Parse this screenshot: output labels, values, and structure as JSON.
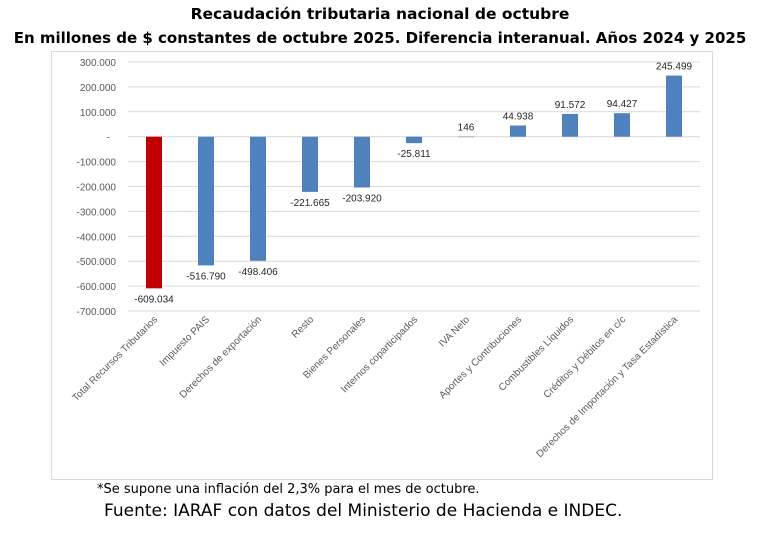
{
  "chart_data": {
    "type": "bar",
    "title": "Recaudación tributaria nacional de octubre",
    "subtitle": "En millones de $ constantes de octubre 2025. Diferencia interanual. Años 2024 y 2025",
    "categories": [
      "Total Recursos Tributarios",
      "Impuesto PAIS",
      "Derechos de exportación",
      "Resto",
      "Bienes Personales",
      "Internos coparticipados",
      "IVA Neto",
      "Aportes y Contribuciones",
      "Combustibles Líquidos",
      "Créditos y Débitos en c/c",
      "Derechos de Importación y Tasa Estadística"
    ],
    "values": [
      -609034,
      -516790,
      -498406,
      -221665,
      -203920,
      -25811,
      146,
      44938,
      91572,
      94427,
      245499
    ],
    "data_labels": [
      "-609.034",
      "-516.790",
      "-498.406",
      "-221.665",
      "-203.920",
      "-25.811",
      "146",
      "44.938",
      "91.572",
      "94.427",
      "245.499"
    ],
    "ylim": [
      -700000,
      300000
    ],
    "yticks": [
      300000,
      200000,
      100000,
      0,
      -100000,
      -200000,
      -300000,
      -400000,
      -500000,
      -600000,
      -700000
    ],
    "ytick_labels": [
      "300.000",
      "200.000",
      "100.000",
      "-",
      "-100.000",
      "-200.000",
      "-300.000",
      "-400.000",
      "-500.000",
      "-600.000",
      "-700.000"
    ],
    "grid": true,
    "colors": {
      "highlight": "#c00000",
      "bars": "#4f81bd"
    }
  },
  "footnote": "*Se supone una inflación del 2,3% para el mes de octubre.",
  "source": "Fuente: IARAF con datos del Ministerio de Hacienda e INDEC."
}
